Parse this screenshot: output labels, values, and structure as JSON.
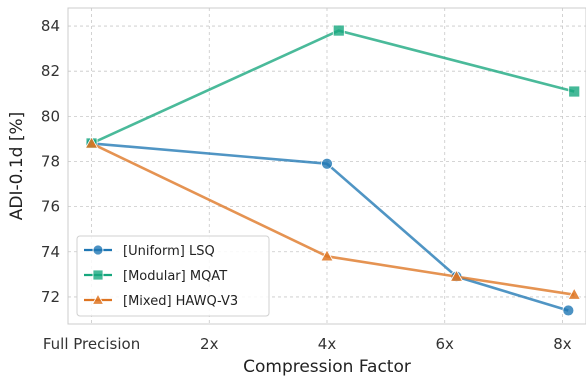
{
  "chart_data": {
    "type": "line",
    "xlabel": "Compression Factor",
    "ylabel": "ADI-0.1d [%]",
    "x_ticks": [
      {
        "value": 0,
        "label": "Full Precision"
      },
      {
        "value": 2,
        "label": "2x"
      },
      {
        "value": 4,
        "label": "4x"
      },
      {
        "value": 6,
        "label": "6x"
      },
      {
        "value": 8,
        "label": "8x"
      }
    ],
    "y_ticks": [
      72,
      74,
      76,
      78,
      80,
      82,
      84
    ],
    "xlim": [
      -0.4,
      8.4
    ],
    "ylim": [
      70.8,
      84.8
    ],
    "grid": true,
    "legend_position": "lower-left",
    "series": [
      {
        "name": "[Uniform] LSQ",
        "color": "#1f77b4",
        "marker": "circle",
        "points": [
          [
            0,
            78.8
          ],
          [
            4,
            77.9
          ],
          [
            6.2,
            72.9
          ],
          [
            8.1,
            71.4
          ]
        ]
      },
      {
        "name": "[Modular] MQAT",
        "color": "#17a77e",
        "marker": "square",
        "points": [
          [
            0,
            78.8
          ],
          [
            4.2,
            83.8
          ],
          [
            8.2,
            81.1
          ]
        ]
      },
      {
        "name": "[Mixed] HAWQ-V3",
        "color": "#de7421",
        "marker": "triangle",
        "points": [
          [
            0,
            78.8
          ],
          [
            4,
            73.8
          ],
          [
            6.2,
            72.9
          ],
          [
            8.2,
            72.1
          ]
        ]
      }
    ]
  }
}
